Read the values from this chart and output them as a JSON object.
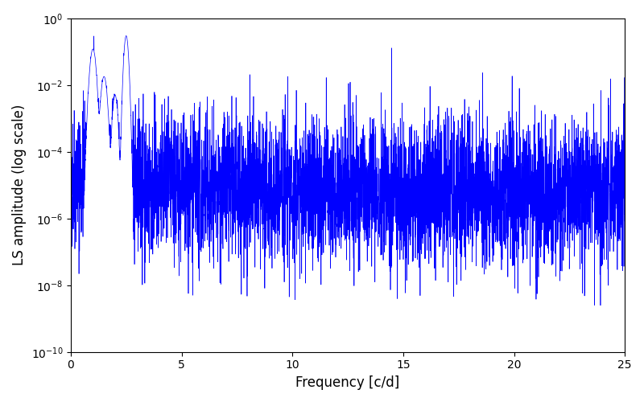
{
  "xlabel": "Frequency [c/d]",
  "ylabel": "LS amplitude (log scale)",
  "line_color": "#0000ff",
  "xlim": [
    0,
    25
  ],
  "ylim": [
    1e-10,
    1.0
  ],
  "xticks": [
    0,
    5,
    10,
    15,
    20,
    25
  ],
  "background_color": "#ffffff",
  "line_width": 0.5
}
